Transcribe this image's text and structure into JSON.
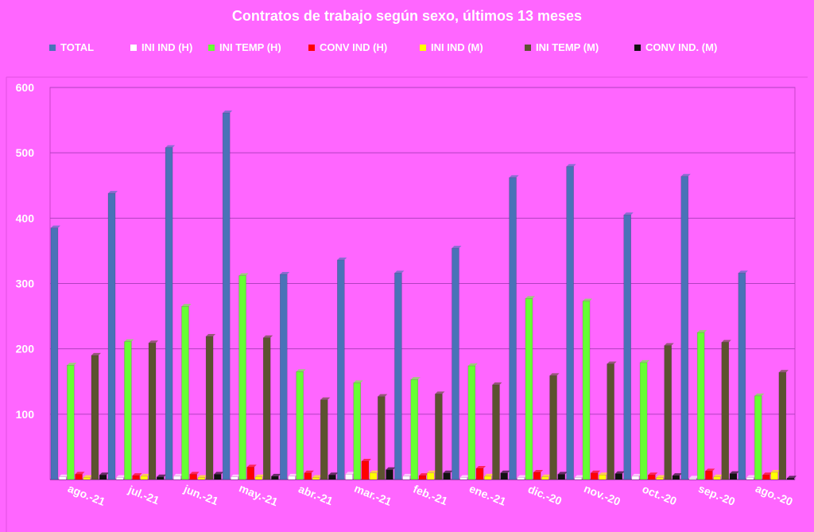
{
  "chart_data": {
    "type": "bar",
    "title": "Contratos de trabajo según sexo, últimos 13 meses",
    "xlabel": "",
    "ylabel": "",
    "ylim": [
      0,
      600
    ],
    "yticks": [
      100,
      200,
      300,
      400,
      500,
      600
    ],
    "grid": true,
    "legend_position": "top",
    "categories": [
      "ago.-21",
      "jul.-21",
      "jun.-21",
      "may.-21",
      "abr.-21",
      "mar.-21",
      "feb.-21",
      "ene.-21",
      "dic.-20",
      "nov.-20",
      "oct.-20",
      "sep.-20",
      "ago.-20"
    ],
    "series": [
      {
        "name": "TOTAL",
        "color": "#4a72b8",
        "values": [
          385,
          438,
          508,
          561,
          314,
          336,
          316,
          354,
          462,
          479,
          405,
          464,
          316
        ]
      },
      {
        "name": "INI IND (H)",
        "color": "#ffffff",
        "values": [
          4,
          3,
          5,
          4,
          5,
          8,
          5,
          3,
          3,
          3,
          5,
          2,
          3
        ]
      },
      {
        "name": "INI TEMP (H)",
        "color": "#66ff33",
        "values": [
          175,
          211,
          265,
          312,
          165,
          148,
          153,
          174,
          277,
          273,
          179,
          225,
          128
        ]
      },
      {
        "name": "CONV IND (H)",
        "color": "#ff0000",
        "values": [
          8,
          6,
          8,
          19,
          10,
          28,
          6,
          17,
          11,
          10,
          7,
          13,
          7
        ]
      },
      {
        "name": "INI IND (M)",
        "color": "#ffff00",
        "values": [
          3,
          5,
          3,
          4,
          3,
          10,
          10,
          5,
          4,
          7,
          3,
          4,
          11
        ]
      },
      {
        "name": "INI TEMP  (M)",
        "color": "#5c5230",
        "values": [
          190,
          209,
          219,
          217,
          122,
          127,
          131,
          145,
          159,
          177,
          205,
          210,
          164
        ]
      },
      {
        "name": "CONV IND.  (M)",
        "color": "#111111",
        "values": [
          7,
          4,
          8,
          5,
          7,
          15,
          10,
          10,
          8,
          9,
          6,
          9,
          2
        ]
      }
    ]
  }
}
